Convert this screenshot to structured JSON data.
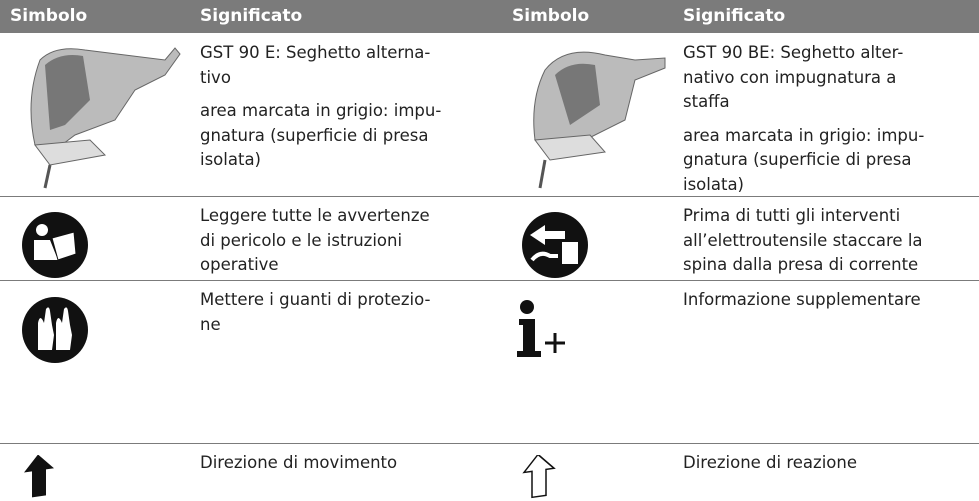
{
  "table": {
    "header": [
      "Simbolo",
      "Significato",
      "Simbolo",
      "Significato"
    ],
    "rows": [
      [
        [
          [
            "GST 90 E: Seghetto alterna-",
            "tivo"
          ],
          [
            "area marcata in grigio: impu-",
            "gnatura (superficie di presa",
            "isolata)"
          ]
        ],
        [
          [
            "GST 90 BE: Seghetto alter-",
            "nativo con impugnatura a",
            "staffa"
          ],
          [
            "area marcata in grigio: impu-",
            "gnatura (superficie di presa",
            "isolata)"
          ]
        ]
      ],
      [
        [
          [
            "Leggere tutte le avvertenze",
            "di pericolo e le istruzioni",
            "operative"
          ]
        ],
        [
          [
            "Prima di tutti gli interventi",
            "all’elettroutensile staccare la",
            "spina dalla presa di corrente"
          ]
        ]
      ],
      [
        [
          [
            "Mettere i guanti di protezio-",
            "ne"
          ]
        ],
        [
          [
            "Informazione supplementare"
          ]
        ]
      ],
      [
        [
          [
            "Direzione di movimento"
          ]
        ],
        [
          [
            "Direzione di reazione"
          ]
        ]
      ]
    ]
  }
}
